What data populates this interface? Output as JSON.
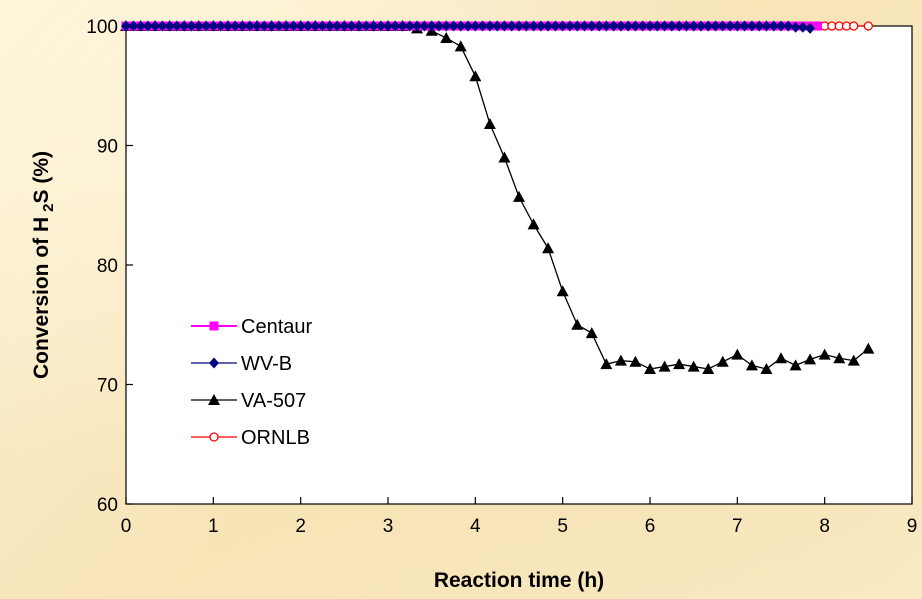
{
  "chart_data": {
    "type": "line",
    "title": "",
    "xlabel": "Reaction time (h)",
    "ylabel_parts": [
      "Conversion of H",
      "2",
      "S (%)"
    ],
    "xlim": [
      0,
      9
    ],
    "ylim": [
      60,
      100
    ],
    "xticks": [
      "0",
      "1",
      "2",
      "3",
      "4",
      "5",
      "6",
      "7",
      "8",
      "9"
    ],
    "yticks": [
      "60",
      "70",
      "80",
      "90",
      "100"
    ],
    "grid": false,
    "legend_position": "left-middle",
    "series": [
      {
        "name": "Centaur",
        "color": "#ff00ff",
        "marker": "square",
        "x": [
          0,
          0.083,
          0.167,
          0.25,
          0.333,
          0.417,
          0.5,
          0.583,
          0.667,
          0.75,
          0.833,
          0.917,
          1.0,
          1.083,
          1.167,
          1.25,
          1.333,
          1.417,
          1.5,
          1.583,
          1.667,
          1.75,
          1.833,
          1.917,
          2.0,
          2.083,
          2.167,
          2.25,
          2.333,
          2.417,
          2.5,
          2.583,
          2.667,
          2.75,
          2.833,
          2.917,
          3.0,
          3.083,
          3.167,
          3.25,
          3.333,
          3.417,
          3.5,
          3.583,
          3.667,
          3.75,
          3.833,
          3.917,
          4.0,
          4.083,
          4.167,
          4.25,
          4.333,
          4.417,
          4.5,
          4.583,
          4.667,
          4.75,
          4.833,
          4.917,
          5.0,
          5.083,
          5.167,
          5.25,
          5.333,
          5.417,
          5.5,
          5.583,
          5.667,
          5.75,
          5.833,
          5.917,
          6.0,
          6.083,
          6.167,
          6.25,
          6.333,
          6.417,
          6.5,
          6.583,
          6.667,
          6.75,
          6.833,
          6.917,
          7.0,
          7.083,
          7.167,
          7.25,
          7.333,
          7.417,
          7.5,
          7.583,
          7.667,
          7.75,
          7.833,
          7.917
        ],
        "y": [
          100,
          100,
          100,
          100,
          100,
          100,
          100,
          100,
          100,
          100,
          100,
          100,
          100,
          100,
          100,
          100,
          100,
          100,
          100,
          100,
          100,
          100,
          100,
          100,
          100,
          100,
          100,
          100,
          100,
          100,
          100,
          100,
          100,
          100,
          100,
          100,
          100,
          100,
          100,
          100,
          100,
          100,
          100,
          100,
          100,
          100,
          100,
          100,
          100,
          100,
          100,
          100,
          100,
          100,
          100,
          100,
          100,
          100,
          100,
          100,
          100,
          100,
          100,
          100,
          100,
          100,
          100,
          100,
          100,
          100,
          100,
          100,
          100,
          100,
          100,
          100,
          100,
          100,
          100,
          100,
          100,
          100,
          100,
          100,
          100,
          100,
          100,
          100,
          100,
          100,
          100,
          100,
          100,
          100,
          100,
          100
        ]
      },
      {
        "name": "WV-B",
        "color": "#000080",
        "marker": "diamond",
        "x": [
          0,
          0.083,
          0.167,
          0.25,
          0.333,
          0.417,
          0.5,
          0.583,
          0.667,
          0.75,
          0.833,
          0.917,
          1.0,
          1.083,
          1.167,
          1.25,
          1.333,
          1.417,
          1.5,
          1.583,
          1.667,
          1.75,
          1.833,
          1.917,
          2.0,
          2.083,
          2.167,
          2.25,
          2.333,
          2.417,
          2.5,
          2.583,
          2.667,
          2.75,
          2.833,
          2.917,
          3.0,
          3.083,
          3.167,
          3.25,
          3.333,
          3.417,
          3.5,
          3.583,
          3.667,
          3.75,
          3.833,
          3.917,
          4.0,
          4.083,
          4.167,
          4.25,
          4.333,
          4.417,
          4.5,
          4.583,
          4.667,
          4.75,
          4.833,
          4.917,
          5.0,
          5.083,
          5.167,
          5.25,
          5.333,
          5.417,
          5.5,
          5.583,
          5.667,
          5.75,
          5.833,
          5.917,
          6.0,
          6.083,
          6.167,
          6.25,
          6.333,
          6.417,
          6.5,
          6.583,
          6.667,
          6.75,
          6.833,
          6.917,
          7.0,
          7.083,
          7.167,
          7.25,
          7.333,
          7.417,
          7.5,
          7.583,
          7.667,
          7.75,
          7.833
        ],
        "y": [
          100,
          100,
          100,
          100,
          100,
          100,
          100,
          100,
          100,
          100,
          100,
          100,
          100,
          100,
          100,
          100,
          100,
          100,
          100,
          100,
          100,
          100,
          100,
          100,
          100,
          100,
          100,
          100,
          100,
          100,
          100,
          100,
          100,
          100,
          100,
          100,
          100,
          100,
          100,
          100,
          100,
          100,
          100,
          100,
          100,
          100,
          100,
          100,
          100,
          100,
          100,
          100,
          100,
          100,
          100,
          100,
          100,
          100,
          100,
          100,
          100,
          100,
          100,
          100,
          100,
          100,
          100,
          100,
          100,
          100,
          100,
          100,
          100,
          100,
          100,
          100,
          100,
          100,
          100,
          100,
          100,
          100,
          100,
          100,
          100,
          100,
          100,
          100,
          100,
          100,
          100,
          100,
          99.9,
          99.9,
          99.8
        ]
      },
      {
        "name": "VA-507",
        "color": "#000000",
        "marker": "triangle",
        "x": [
          0,
          0.167,
          0.333,
          0.5,
          0.667,
          0.833,
          1.0,
          1.167,
          1.333,
          1.5,
          1.667,
          1.833,
          2.0,
          2.167,
          2.333,
          2.5,
          2.667,
          2.833,
          3.0,
          3.167,
          3.333,
          3.5,
          3.667,
          3.833,
          4.0,
          4.167,
          4.333,
          4.5,
          4.667,
          4.833,
          5.0,
          5.167,
          5.333,
          5.5,
          5.667,
          5.833,
          6.0,
          6.167,
          6.333,
          6.5,
          6.667,
          6.833,
          7.0,
          7.167,
          7.333,
          7.5,
          7.667,
          7.833,
          8.0,
          8.167,
          8.333,
          8.5
        ],
        "y": [
          100,
          100,
          100,
          100,
          100,
          100,
          100,
          100,
          100,
          100,
          100,
          100,
          100,
          100,
          100,
          100,
          100,
          100,
          100,
          100,
          99.8,
          99.6,
          99.0,
          98.3,
          95.8,
          91.8,
          89.0,
          85.7,
          83.4,
          81.4,
          77.8,
          75.0,
          74.3,
          71.7,
          72.0,
          71.9,
          71.3,
          71.5,
          71.7,
          71.5,
          71.3,
          71.9,
          72.5,
          71.6,
          71.3,
          72.2,
          71.6,
          72.1,
          72.5,
          72.2,
          72.0,
          73.0
        ]
      },
      {
        "name": "ORNLB",
        "color": "#ff0000",
        "marker": "circle-open",
        "x": [
          0,
          0.083,
          0.167,
          0.25,
          0.333,
          0.417,
          0.5,
          0.583,
          0.667,
          0.75,
          0.833,
          0.917,
          1.0,
          1.083,
          1.167,
          1.25,
          1.333,
          1.417,
          1.5,
          1.583,
          1.667,
          1.75,
          1.833,
          1.917,
          2.0,
          2.083,
          2.167,
          2.25,
          2.333,
          2.417,
          2.5,
          2.583,
          2.667,
          2.75,
          2.833,
          2.917,
          3.0,
          3.083,
          3.167,
          3.25,
          3.333,
          3.417,
          3.5,
          3.583,
          3.667,
          3.75,
          3.833,
          3.917,
          4.0,
          4.083,
          4.167,
          4.25,
          4.333,
          4.417,
          4.5,
          4.583,
          4.667,
          4.75,
          4.833,
          4.917,
          5.0,
          5.083,
          5.167,
          5.25,
          5.333,
          5.417,
          5.5,
          5.583,
          5.667,
          5.75,
          5.833,
          5.917,
          6.0,
          6.083,
          6.167,
          6.25,
          6.333,
          6.417,
          6.5,
          6.583,
          6.667,
          6.75,
          6.833,
          6.917,
          7.0,
          7.083,
          7.167,
          7.25,
          7.333,
          7.417,
          7.5,
          7.583,
          7.667,
          7.75,
          7.833,
          7.917,
          8.0,
          8.083,
          8.167,
          8.25,
          8.333,
          8.5
        ],
        "y": [
          100,
          100,
          100,
          100,
          100,
          100,
          100,
          100,
          100,
          100,
          100,
          100,
          100,
          100,
          100,
          100,
          100,
          100,
          100,
          100,
          100,
          100,
          100,
          100,
          100,
          100,
          100,
          100,
          100,
          100,
          100,
          100,
          100,
          100,
          100,
          100,
          100,
          100,
          100,
          100,
          100,
          100,
          100,
          100,
          100,
          100,
          100,
          100,
          100,
          100,
          100,
          100,
          100,
          100,
          100,
          100,
          100,
          100,
          100,
          100,
          100,
          100,
          100,
          100,
          100,
          100,
          100,
          100,
          100,
          100,
          100,
          100,
          100,
          100,
          100,
          100,
          100,
          100,
          100,
          100,
          100,
          100,
          100,
          100,
          100,
          100,
          100,
          100,
          100,
          100,
          100,
          100,
          100,
          100,
          100,
          100,
          100,
          100,
          100,
          100,
          100,
          100
        ]
      }
    ]
  }
}
